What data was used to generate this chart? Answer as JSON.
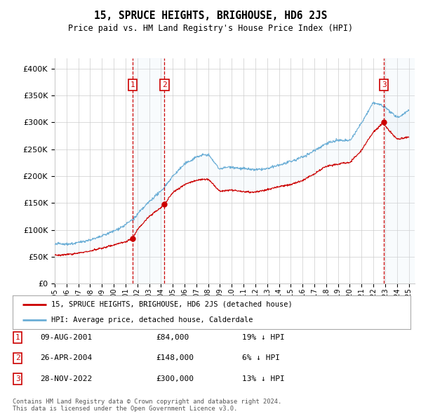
{
  "title": "15, SPRUCE HEIGHTS, BRIGHOUSE, HD6 2JS",
  "subtitle": "Price paid vs. HM Land Registry's House Price Index (HPI)",
  "ytick_values": [
    0,
    50000,
    100000,
    150000,
    200000,
    250000,
    300000,
    350000,
    400000
  ],
  "ylim": [
    0,
    420000
  ],
  "xlim_start": 1995.0,
  "xlim_end": 2025.5,
  "purchases": [
    {
      "index": 1,
      "date_label": "09-AUG-2001",
      "date_x": 2001.6,
      "price": 84000,
      "pct": "19%",
      "dir": "↓"
    },
    {
      "index": 2,
      "date_label": "26-APR-2004",
      "date_x": 2004.3,
      "price": 148000,
      "pct": "6%",
      "dir": "↓"
    },
    {
      "index": 3,
      "date_label": "28-NOV-2022",
      "date_x": 2022.9,
      "price": 300000,
      "pct": "13%",
      "dir": "↓"
    }
  ],
  "legend_line1": "15, SPRUCE HEIGHTS, BRIGHOUSE, HD6 2JS (detached house)",
  "legend_line2": "HPI: Average price, detached house, Calderdale",
  "footer1": "Contains HM Land Registry data © Crown copyright and database right 2024.",
  "footer2": "This data is licensed under the Open Government Licence v3.0.",
  "hpi_color": "#6baed6",
  "price_color": "#cc0000",
  "shade_color": "#dce9f5",
  "vline_color": "#cc0000",
  "box_color": "#cc0000",
  "grid_color": "#cccccc",
  "bg_color": "#ffffff",
  "hpi_key_x": [
    1995,
    1996,
    1997,
    1998,
    1999,
    2000,
    2001,
    2002,
    2003,
    2004,
    2005,
    2006,
    2007,
    2008,
    2009,
    2010,
    2011,
    2012,
    2013,
    2014,
    2015,
    2016,
    2017,
    2018,
    2019,
    2020,
    2021,
    2022,
    2023,
    2024,
    2025
  ],
  "hpi_key_y": [
    72000,
    74000,
    78000,
    83000,
    90000,
    100000,
    110000,
    128000,
    152000,
    172000,
    200000,
    220000,
    235000,
    238000,
    210000,
    215000,
    212000,
    210000,
    215000,
    222000,
    228000,
    235000,
    248000,
    262000,
    268000,
    268000,
    300000,
    338000,
    328000,
    308000,
    318000
  ],
  "price_key_x": [
    1995,
    1996,
    1997,
    1998,
    1999,
    2000,
    2001,
    2001.6,
    2002,
    2003,
    2004,
    2004.3,
    2005,
    2006,
    2007,
    2008,
    2009,
    2010,
    2011,
    2012,
    2013,
    2014,
    2015,
    2016,
    2017,
    2018,
    2019,
    2020,
    2021,
    2022,
    2022.9,
    2023,
    2024,
    2025
  ],
  "price_key_y": [
    52000,
    54000,
    57000,
    61000,
    66000,
    72000,
    78000,
    84000,
    100000,
    125000,
    142000,
    148000,
    170000,
    185000,
    193000,
    195000,
    172000,
    175000,
    172000,
    170000,
    174000,
    180000,
    185000,
    192000,
    205000,
    218000,
    222000,
    225000,
    248000,
    282000,
    300000,
    292000,
    268000,
    272000
  ]
}
